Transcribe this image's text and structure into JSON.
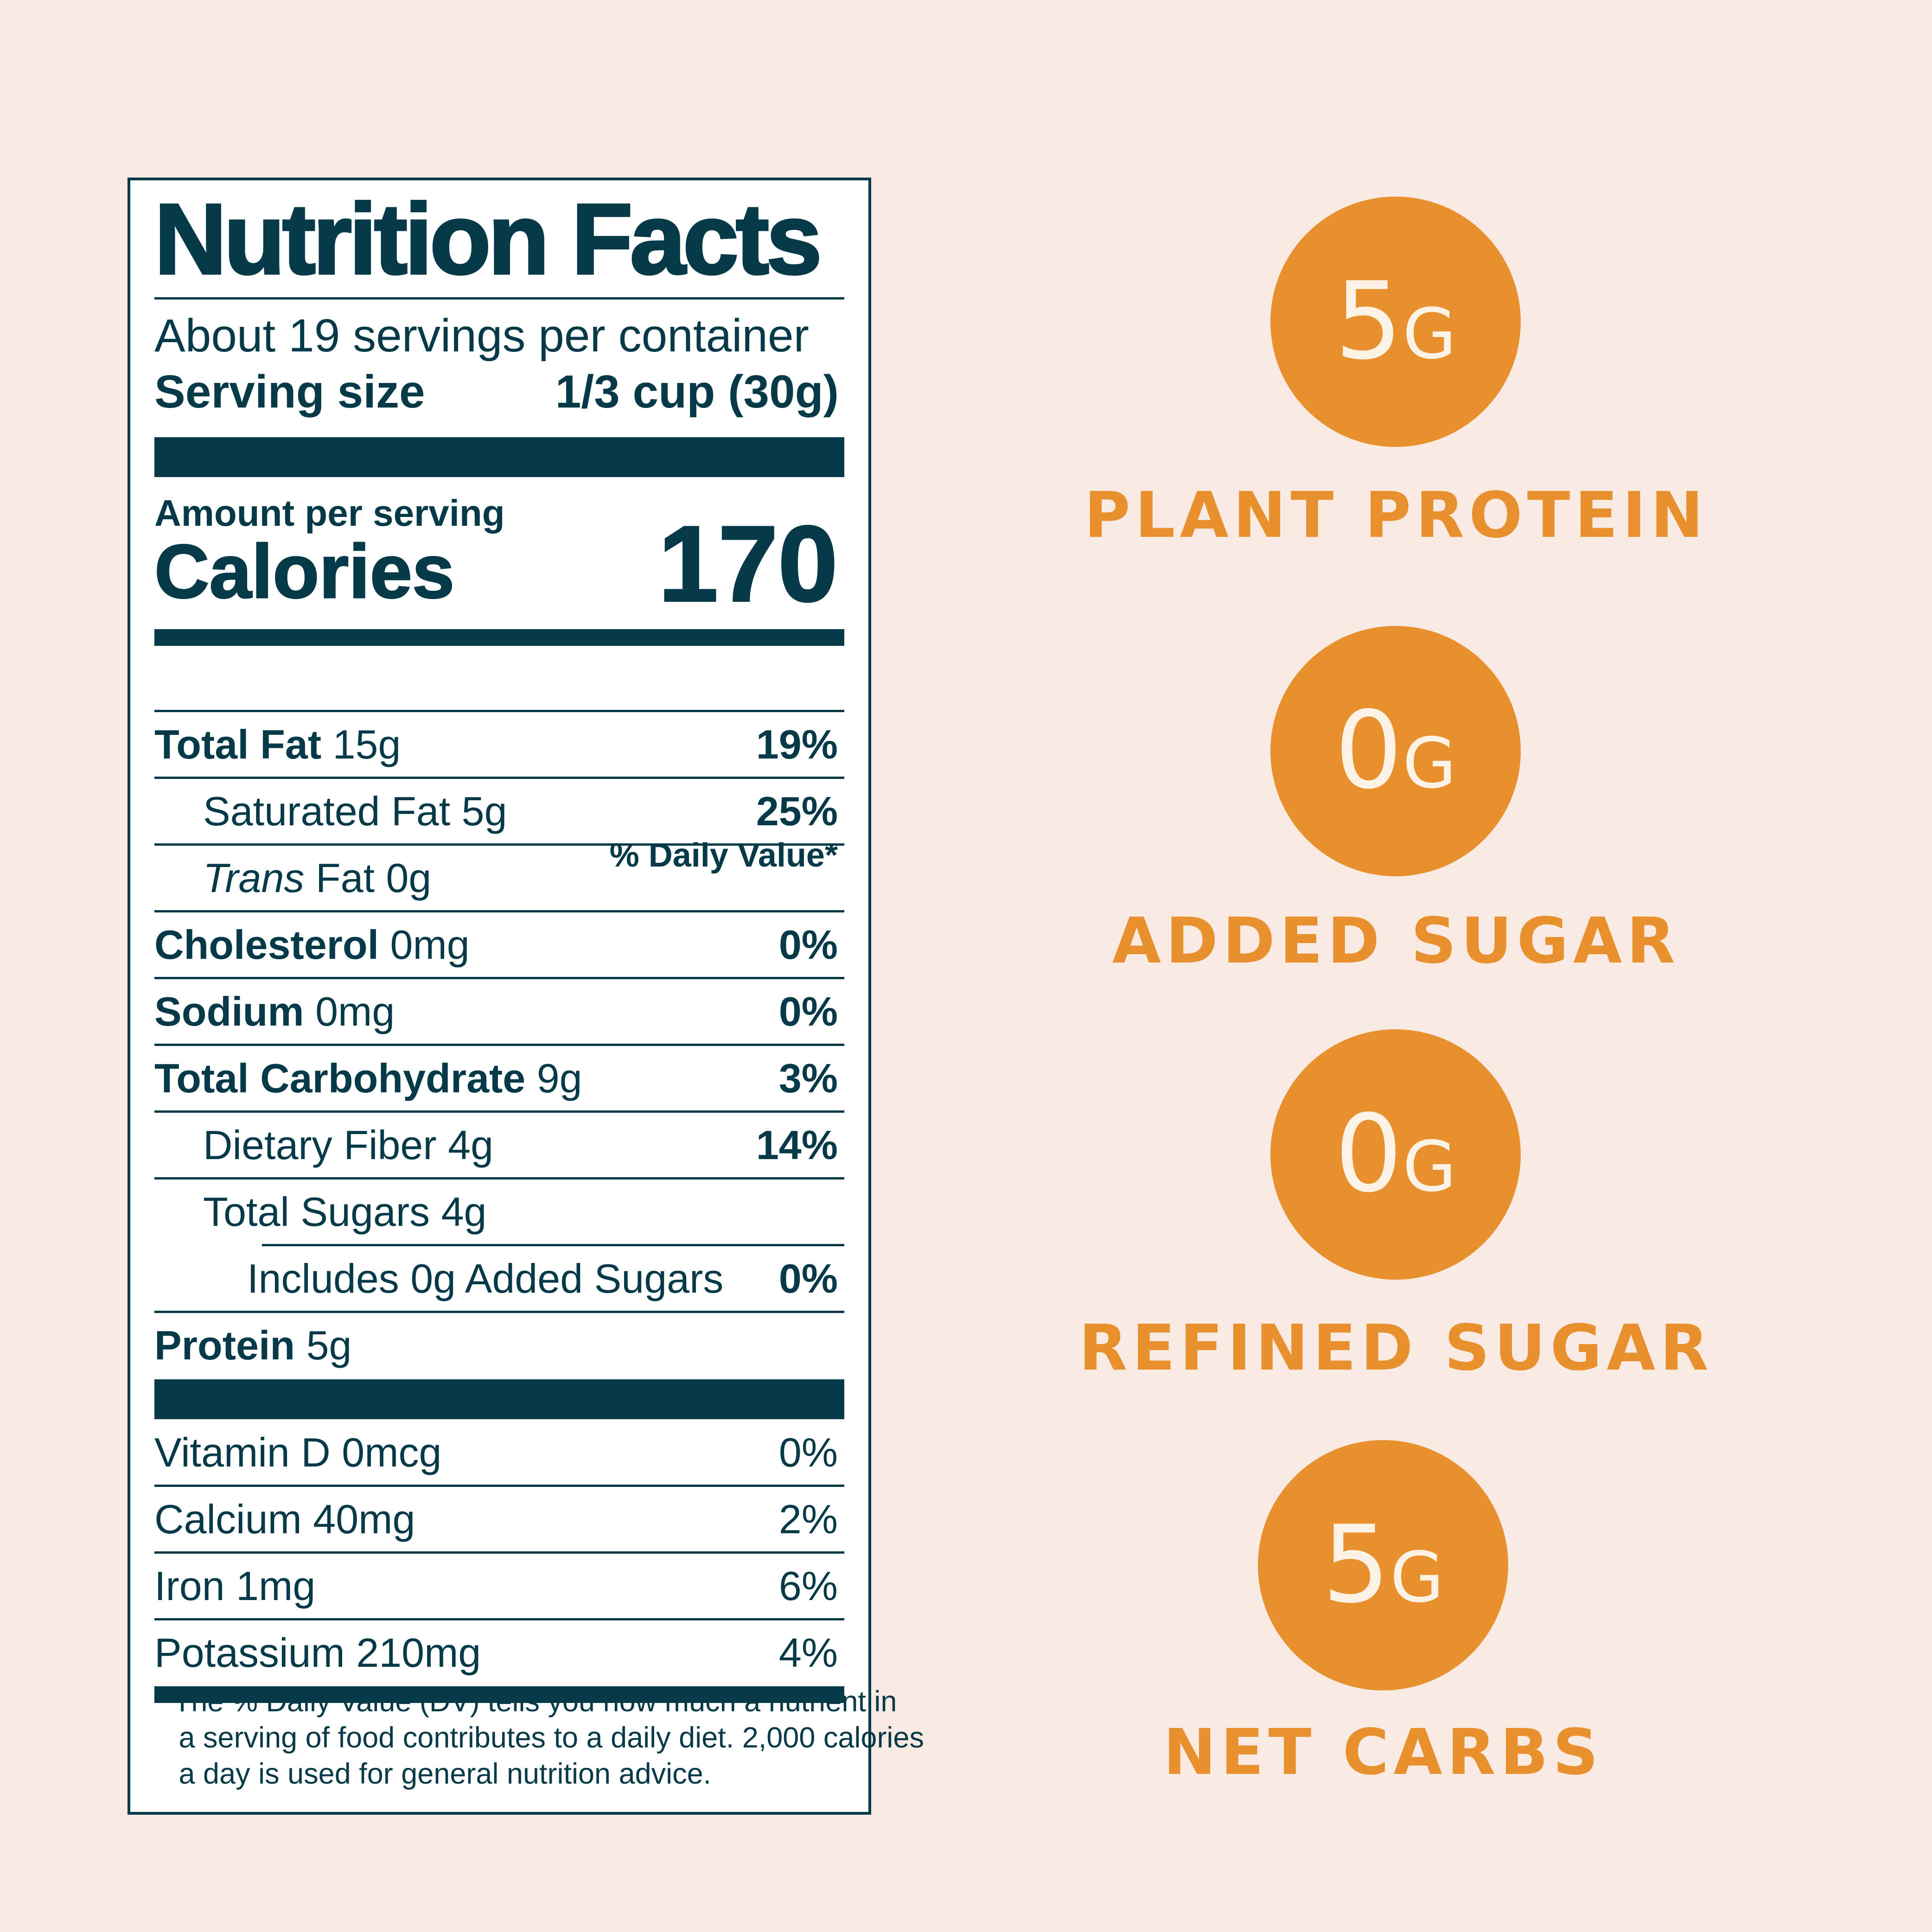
{
  "label": {
    "title": "Nutrition Facts",
    "servings_per_container": "About 19 servings per container",
    "serving_size_label": "Serving size",
    "serving_size_value": "1/3 cup (30g)",
    "amount_per_serving": "Amount per serving",
    "calories_label": "Calories",
    "calories_value": "170",
    "daily_value_header": "% Daily Value*",
    "rows": [
      {
        "name": "Total Fat",
        "amount": "15g",
        "dv": "19%"
      },
      {
        "name": "Saturated Fat",
        "amount": "5g",
        "dv": "25%"
      },
      {
        "name": "Trans",
        "amount": "Fat 0g",
        "dv": ""
      },
      {
        "name": "Cholesterol",
        "amount": "0mg",
        "dv": "0%"
      },
      {
        "name": "Sodium",
        "amount": "0mg",
        "dv": "0%"
      },
      {
        "name": "Total Carbohydrate",
        "amount": "9g",
        "dv": "3%"
      },
      {
        "name": "Dietary Fiber",
        "amount": "4g",
        "dv": "14%"
      },
      {
        "name": "Total Sugars",
        "amount": "4g",
        "dv": ""
      },
      {
        "name": "Includes 0g Added Sugars",
        "amount": "",
        "dv": "0%"
      },
      {
        "name": "Protein",
        "amount": "5g",
        "dv": ""
      }
    ],
    "vitamins": [
      {
        "name": "Vitamin D",
        "amount": "0mcg",
        "dv": "0%"
      },
      {
        "name": "Calcium",
        "amount": "40mg",
        "dv": "2%"
      },
      {
        "name": "Iron",
        "amount": "1mg",
        "dv": "6%"
      },
      {
        "name": "Potassium",
        "amount": "210mg",
        "dv": "4%"
      }
    ],
    "footnote": "* The % Daily Value (DV) tells you how much a nutrient in\n   a serving of food contributes to a daily diet. 2,000 calories\n   a day is used for general nutrition advice."
  },
  "highlights": [
    {
      "value": "5",
      "unit": "G",
      "caption": "PLANT PROTEIN"
    },
    {
      "value": "0",
      "unit": "G",
      "caption": "ADDED SUGAR"
    },
    {
      "value": "0",
      "unit": "G",
      "caption": "REFINED SUGAR"
    },
    {
      "value": "5",
      "unit": "G",
      "caption": "NET CARBS"
    }
  ],
  "colors": {
    "background": "#f9ebe3",
    "label_ink": "#063a48",
    "accent_orange": "#e8902d",
    "badge_text": "#fdf2e6"
  }
}
